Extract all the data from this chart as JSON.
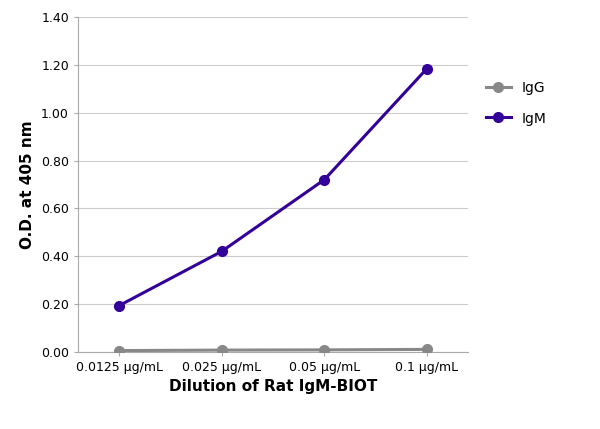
{
  "x_labels": [
    "0.0125 μg/mL",
    "0.025 μg/mL",
    "0.05 μg/mL",
    "0.1 μg/mL"
  ],
  "x_positions": [
    0,
    1,
    2,
    3
  ],
  "IgG_values": [
    0.005,
    0.007,
    0.008,
    0.01
  ],
  "IgM_values": [
    0.193,
    0.42,
    0.72,
    1.185
  ],
  "IgG_color": "#888888",
  "IgM_color": "#330099",
  "xlabel": "Dilution of Rat IgM-BIOT",
  "ylabel": "O.D. at 405 nm",
  "ylim": [
    0.0,
    1.4
  ],
  "yticks": [
    0.0,
    0.2,
    0.4,
    0.6,
    0.8,
    1.0,
    1.2,
    1.4
  ],
  "legend_IgG": "IgG",
  "legend_IgM": "IgM",
  "bg_color": "#FFFFFF",
  "grid_color": "#CCCCCC",
  "marker_size": 7,
  "line_width": 2.2
}
